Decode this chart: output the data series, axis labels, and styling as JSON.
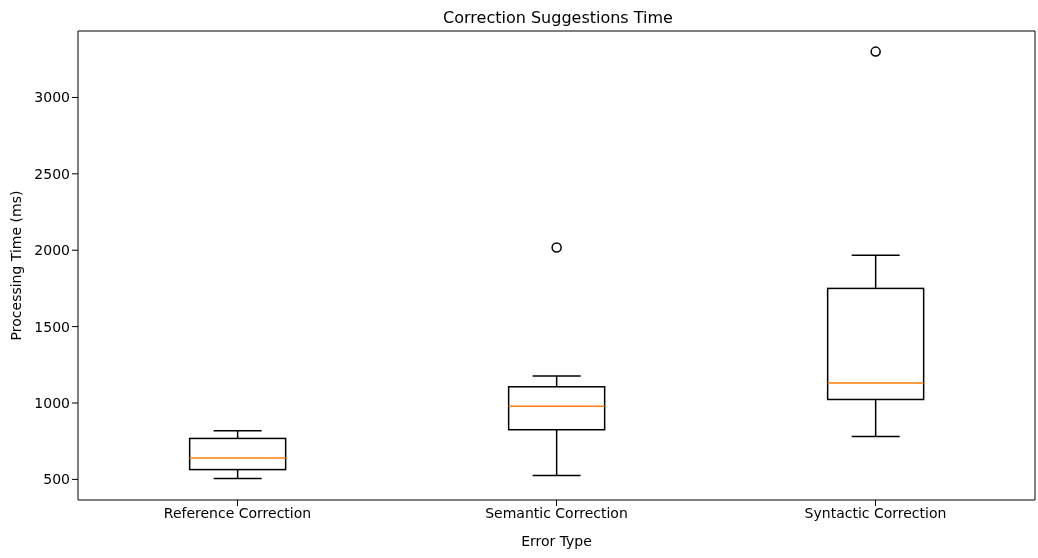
{
  "chart_data": {
    "type": "box",
    "title": "Correction Suggestions Time",
    "xlabel": "Error Type",
    "ylabel": "Processing Time (ms)",
    "categories": [
      "Reference Correction",
      "Semantic Correction",
      "Syntactic Correction"
    ],
    "color": "#000000",
    "boxes": [
      {
        "low": 506,
        "q1": 564,
        "median": 640,
        "q3": 768,
        "high": 819
      },
      {
        "low": 526,
        "q1": 825,
        "median": 978,
        "q3": 1106,
        "high": 1176,
        "outliers": [
          2018
        ]
      },
      {
        "low": 781,
        "q1": 1023,
        "median": 1131,
        "q3": 1750,
        "high": 1967,
        "outliers": [
          3300
        ]
      }
    ],
    "ylim": [
      365,
      3435
    ],
    "yticks": [
      500,
      1000,
      1500,
      2000,
      2500,
      3000
    ]
  }
}
